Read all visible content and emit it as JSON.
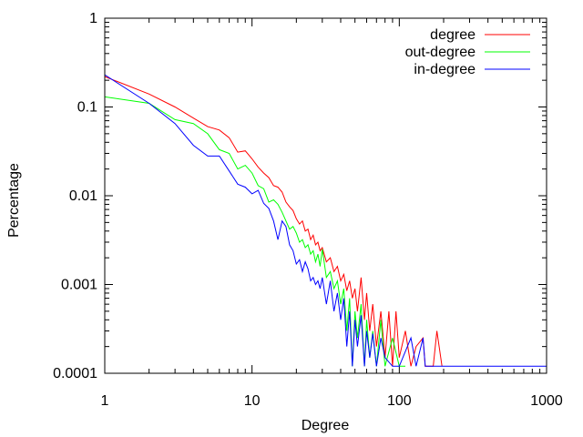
{
  "chart_data": {
    "type": "line",
    "xlabel": "Degree",
    "ylabel": "Percentage",
    "xscale": "log",
    "yscale": "log",
    "xlim": [
      1,
      1000
    ],
    "ylim": [
      0.0001,
      1
    ],
    "grid": false,
    "legend_position": "top-right",
    "x_ticks": [
      {
        "value": 1,
        "label": "1"
      },
      {
        "value": 10,
        "label": "10"
      },
      {
        "value": 100,
        "label": "100"
      },
      {
        "value": 1000,
        "label": "1000"
      }
    ],
    "y_ticks": [
      {
        "value": 0.0001,
        "label": "0.0001"
      },
      {
        "value": 0.001,
        "label": "0.001"
      },
      {
        "value": 0.01,
        "label": "0.01"
      },
      {
        "value": 0.1,
        "label": "0.1"
      },
      {
        "value": 1,
        "label": "1"
      }
    ],
    "series": [
      {
        "name": "degree",
        "color": "#ff0000",
        "points": [
          [
            1,
            0.22
          ],
          [
            2,
            0.14
          ],
          [
            3,
            0.1
          ],
          [
            4,
            0.075
          ],
          [
            5,
            0.06
          ],
          [
            6,
            0.055
          ],
          [
            7,
            0.045
          ],
          [
            8,
            0.031
          ],
          [
            9,
            0.032
          ],
          [
            10,
            0.026
          ],
          [
            11,
            0.021
          ],
          [
            12,
            0.018
          ],
          [
            13,
            0.016
          ],
          [
            14,
            0.013
          ],
          [
            15,
            0.0125
          ],
          [
            16,
            0.011
          ],
          [
            17,
            0.0085
          ],
          [
            18,
            0.0075
          ],
          [
            19,
            0.0068
          ],
          [
            20,
            0.0055
          ],
          [
            21,
            0.0048
          ],
          [
            22,
            0.0052
          ],
          [
            23,
            0.004
          ],
          [
            24,
            0.0042
          ],
          [
            25,
            0.0032
          ],
          [
            26,
            0.0036
          ],
          [
            27,
            0.0028
          ],
          [
            28,
            0.003
          ],
          [
            29,
            0.0024
          ],
          [
            30,
            0.0026
          ],
          [
            32,
            0.0018
          ],
          [
            34,
            0.002
          ],
          [
            36,
            0.0014
          ],
          [
            38,
            0.0016
          ],
          [
            40,
            0.0011
          ],
          [
            42,
            0.0013
          ],
          [
            44,
            0.00085
          ],
          [
            46,
            0.0011
          ],
          [
            48,
            0.0007
          ],
          [
            50,
            0.0009
          ],
          [
            52,
            0.0005
          ],
          [
            55,
            0.0012
          ],
          [
            58,
            0.0004
          ],
          [
            60,
            0.0008
          ],
          [
            63,
            0.0003
          ],
          [
            66,
            0.0006
          ],
          [
            70,
            0.0002
          ],
          [
            75,
            0.0005
          ],
          [
            80,
            0.00015
          ],
          [
            85,
            0.0005
          ],
          [
            90,
            0.00012
          ],
          [
            95,
            0.0005
          ],
          [
            100,
            0.00015
          ],
          [
            110,
            0.0003
          ],
          [
            120,
            0.00012
          ],
          [
            130,
            0.0002
          ],
          [
            145,
            0.00025
          ],
          [
            150,
            0.00012
          ],
          [
            170,
            0.00012
          ],
          [
            180,
            0.0003
          ],
          [
            195,
            0.00012
          ]
        ]
      },
      {
        "name": "out-degree",
        "color": "#00ff00",
        "points": [
          [
            1,
            0.13
          ],
          [
            2,
            0.11
          ],
          [
            3,
            0.072
          ],
          [
            4,
            0.065
          ],
          [
            5,
            0.05
          ],
          [
            6,
            0.033
          ],
          [
            7,
            0.03
          ],
          [
            8,
            0.02
          ],
          [
            9,
            0.022
          ],
          [
            10,
            0.018
          ],
          [
            11,
            0.013
          ],
          [
            12,
            0.012
          ],
          [
            13,
            0.0085
          ],
          [
            14,
            0.009
          ],
          [
            15,
            0.008
          ],
          [
            16,
            0.0065
          ],
          [
            17,
            0.0052
          ],
          [
            18,
            0.0042
          ],
          [
            19,
            0.0045
          ],
          [
            20,
            0.0038
          ],
          [
            21,
            0.003
          ],
          [
            22,
            0.0032
          ],
          [
            23,
            0.0026
          ],
          [
            24,
            0.0028
          ],
          [
            25,
            0.0022
          ],
          [
            26,
            0.0024
          ],
          [
            27,
            0.0018
          ],
          [
            28,
            0.0022
          ],
          [
            29,
            0.0016
          ],
          [
            30,
            0.0025
          ],
          [
            32,
            0.0012
          ],
          [
            34,
            0.0014
          ],
          [
            36,
            0.0009
          ],
          [
            38,
            0.0011
          ],
          [
            40,
            0.0006
          ],
          [
            42,
            0.0009
          ],
          [
            44,
            0.0003
          ],
          [
            46,
            0.0007
          ],
          [
            48,
            0.00012
          ],
          [
            50,
            0.0005
          ],
          [
            52,
            0.00025
          ],
          [
            55,
            0.0006
          ],
          [
            58,
            0.00012
          ],
          [
            60,
            0.0004
          ],
          [
            63,
            0.00015
          ],
          [
            66,
            0.0003
          ],
          [
            70,
            0.00012
          ],
          [
            75,
            0.0004
          ],
          [
            80,
            0.00012
          ],
          [
            90,
            0.00025
          ],
          [
            100,
            0.00012
          ],
          [
            110,
            0.00012
          ]
        ]
      },
      {
        "name": "in-degree",
        "color": "#0000ff",
        "points": [
          [
            1,
            0.23
          ],
          [
            2,
            0.11
          ],
          [
            3,
            0.065
          ],
          [
            4,
            0.037
          ],
          [
            5,
            0.028
          ],
          [
            6,
            0.028
          ],
          [
            7,
            0.019
          ],
          [
            8,
            0.0135
          ],
          [
            9,
            0.0125
          ],
          [
            10,
            0.0105
          ],
          [
            11,
            0.0115
          ],
          [
            12,
            0.0082
          ],
          [
            13,
            0.0072
          ],
          [
            14,
            0.0052
          ],
          [
            15,
            0.0032
          ],
          [
            16,
            0.0052
          ],
          [
            17,
            0.0045
          ],
          [
            18,
            0.0028
          ],
          [
            19,
            0.0024
          ],
          [
            20,
            0.0017
          ],
          [
            21,
            0.0019
          ],
          [
            22,
            0.0014
          ],
          [
            23,
            0.0018
          ],
          [
            24,
            0.0015
          ],
          [
            25,
            0.0011
          ],
          [
            26,
            0.0012
          ],
          [
            27,
            0.001
          ],
          [
            28,
            0.0011
          ],
          [
            29,
            0.0009
          ],
          [
            30,
            0.0012
          ],
          [
            32,
            0.0006
          ],
          [
            34,
            0.0011
          ],
          [
            36,
            0.0005
          ],
          [
            38,
            0.0008
          ],
          [
            40,
            0.0004
          ],
          [
            42,
            0.0007
          ],
          [
            44,
            0.0002
          ],
          [
            46,
            0.0005
          ],
          [
            48,
            0.00012
          ],
          [
            50,
            0.0004
          ],
          [
            52,
            0.0002
          ],
          [
            55,
            0.00045
          ],
          [
            58,
            0.00012
          ],
          [
            60,
            0.0003
          ],
          [
            63,
            0.00015
          ],
          [
            66,
            0.00028
          ],
          [
            70,
            0.00012
          ],
          [
            75,
            0.00025
          ],
          [
            80,
            0.00015
          ],
          [
            90,
            0.00012
          ],
          [
            100,
            0.00012
          ],
          [
            120,
            0.00025
          ],
          [
            130,
            0.00012
          ],
          [
            145,
            0.00025
          ],
          [
            150,
            0.00012
          ],
          [
            200,
            0.00012
          ],
          [
            300,
            0.00012
          ],
          [
            500,
            0.00012
          ],
          [
            1000,
            0.00012
          ]
        ]
      }
    ]
  }
}
